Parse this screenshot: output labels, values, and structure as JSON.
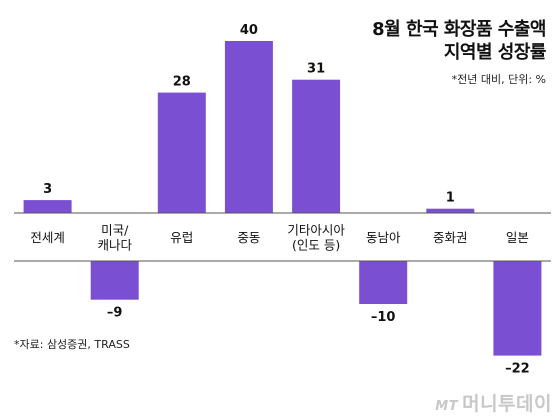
{
  "header": {
    "title_line1": "8월 한국 화장품 수출액",
    "title_line2": "지역별 성장률",
    "note": "*전년 대비, 단위: %"
  },
  "footer": {
    "source": "*자료: 삼성증권, TRASS"
  },
  "watermark": {
    "logo": "MT",
    "text": "머니투데이"
  },
  "colors": {
    "bar": "#7b4fd1",
    "axis": "#555555",
    "text": "#111111"
  },
  "chart_data": {
    "type": "bar",
    "title": "8월 한국 화장품 수출액 지역별 성장률",
    "subtitle": "*전년 대비, 단위: %",
    "categories": [
      [
        "전세계"
      ],
      [
        "미국/",
        "캐나다"
      ],
      [
        "유럽"
      ],
      [
        "중동"
      ],
      [
        "기타아시아",
        "(인도 등)"
      ],
      [
        "동남아"
      ],
      [
        "중화권"
      ],
      [
        "일본"
      ]
    ],
    "values": [
      3,
      -9,
      28,
      40,
      31,
      -10,
      1,
      -22
    ],
    "value_labels": [
      "3",
      "–9",
      "28",
      "40",
      "31",
      "–10",
      "1",
      "–22"
    ],
    "xlabel": "",
    "ylabel": "",
    "ylim": [
      -22,
      40
    ],
    "grid": false,
    "legend": "none"
  }
}
